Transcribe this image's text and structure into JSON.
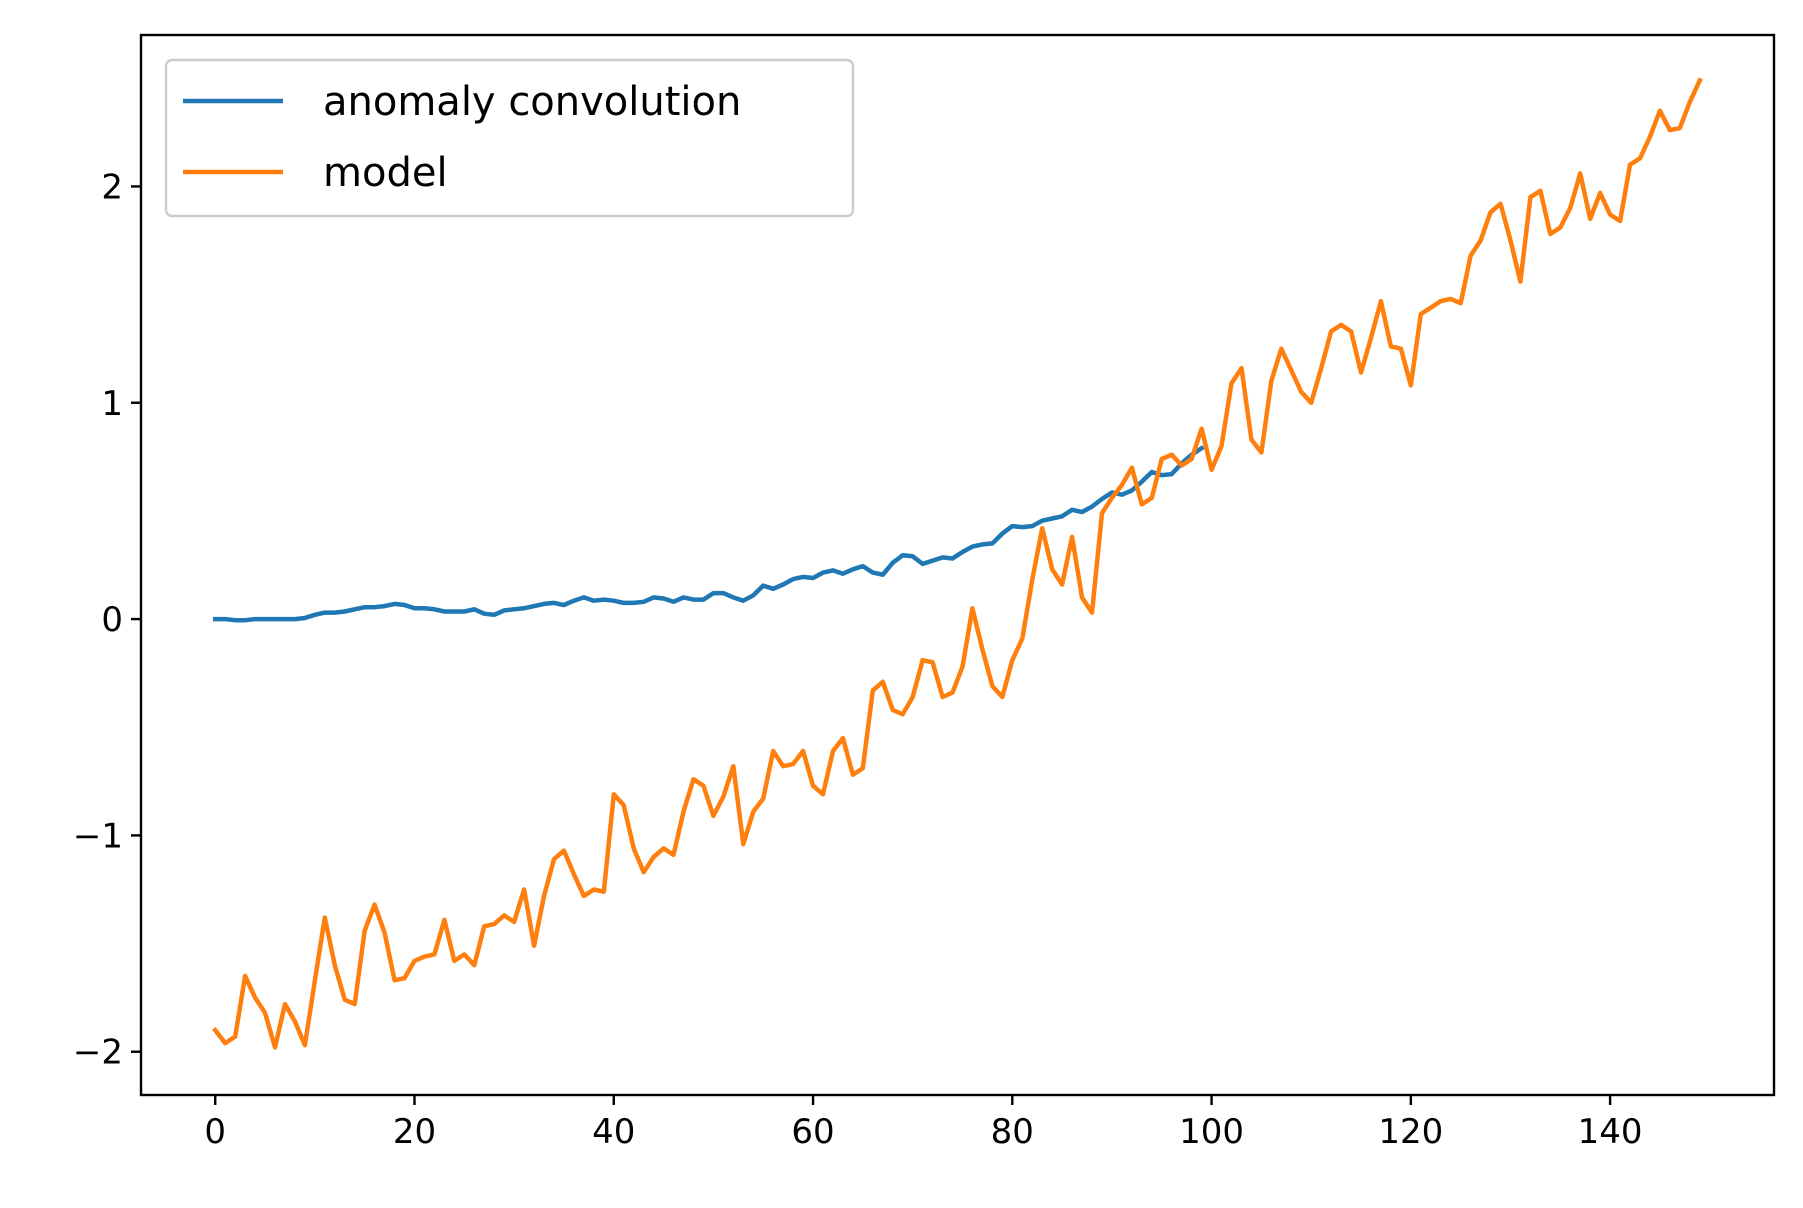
{
  "chart_data": {
    "type": "line",
    "title": "",
    "xlabel": "",
    "ylabel": "",
    "xlim": [
      -7.45,
      156.45
    ],
    "ylim": [
      -2.2,
      2.7
    ],
    "xticks": [
      0,
      20,
      40,
      60,
      80,
      100,
      120,
      140
    ],
    "yticks": [
      -2,
      -1,
      0,
      1,
      2
    ],
    "grid": false,
    "legend": {
      "position": "top-left"
    },
    "series": [
      {
        "name": "anomaly convolution",
        "color": "#1f77b4",
        "x": [
          0,
          1,
          2,
          3,
          4,
          5,
          6,
          7,
          8,
          9,
          10,
          11,
          12,
          13,
          14,
          15,
          16,
          17,
          18,
          19,
          20,
          21,
          22,
          23,
          24,
          25,
          26,
          27,
          28,
          29,
          30,
          31,
          32,
          33,
          34,
          35,
          36,
          37,
          38,
          39,
          40,
          41,
          42,
          43,
          44,
          45,
          46,
          47,
          48,
          49,
          50,
          51,
          52,
          53,
          54,
          55,
          56,
          57,
          58,
          59,
          60,
          61,
          62,
          63,
          64,
          65,
          66,
          67,
          68,
          69,
          70,
          71,
          72,
          73,
          74,
          75,
          76,
          77,
          78,
          79,
          80,
          81,
          82,
          83,
          84,
          85,
          86,
          87,
          88,
          89,
          90,
          91,
          92,
          93,
          94,
          95,
          96,
          97,
          98,
          99
        ],
        "y": [
          0.0,
          0.0,
          -0.005,
          -0.005,
          0.0,
          0.0,
          0.0,
          0.0,
          0.0,
          0.005,
          0.02,
          0.03,
          0.03,
          0.035,
          0.045,
          0.055,
          0.055,
          0.06,
          0.07,
          0.065,
          0.05,
          0.05,
          0.045,
          0.035,
          0.035,
          0.035,
          0.045,
          0.025,
          0.02,
          0.04,
          0.045,
          0.05,
          0.06,
          0.07,
          0.075,
          0.065,
          0.085,
          0.1,
          0.085,
          0.09,
          0.085,
          0.075,
          0.075,
          0.08,
          0.1,
          0.095,
          0.08,
          0.1,
          0.09,
          0.09,
          0.12,
          0.12,
          0.1,
          0.085,
          0.11,
          0.155,
          0.14,
          0.16,
          0.185,
          0.195,
          0.19,
          0.215,
          0.225,
          0.21,
          0.23,
          0.245,
          0.215,
          0.205,
          0.26,
          0.295,
          0.29,
          0.255,
          0.27,
          0.285,
          0.28,
          0.31,
          0.335,
          0.345,
          0.35,
          0.395,
          0.43,
          0.425,
          0.43,
          0.455,
          0.465,
          0.475,
          0.505,
          0.495,
          0.52,
          0.555,
          0.585,
          0.575,
          0.595,
          0.635,
          0.68,
          0.665,
          0.67,
          0.72,
          0.76,
          0.79
        ]
      },
      {
        "name": "model",
        "color": "#ff7f0e",
        "x": [
          0,
          1,
          2,
          3,
          4,
          5,
          6,
          7,
          8,
          9,
          10,
          11,
          12,
          13,
          14,
          15,
          16,
          17,
          18,
          19,
          20,
          21,
          22,
          23,
          24,
          25,
          26,
          27,
          28,
          29,
          30,
          31,
          32,
          33,
          34,
          35,
          36,
          37,
          38,
          39,
          40,
          41,
          42,
          43,
          44,
          45,
          46,
          47,
          48,
          49,
          50,
          51,
          52,
          53,
          54,
          55,
          56,
          57,
          58,
          59,
          60,
          61,
          62,
          63,
          64,
          65,
          66,
          67,
          68,
          69,
          70,
          71,
          72,
          73,
          74,
          75,
          76,
          77,
          78,
          79,
          80,
          81,
          82,
          83,
          84,
          85,
          86,
          87,
          88,
          89,
          90,
          91,
          92,
          93,
          94,
          95,
          96,
          97,
          98,
          99,
          100,
          101,
          102,
          103,
          104,
          105,
          106,
          107,
          108,
          109,
          110,
          111,
          112,
          113,
          114,
          115,
          116,
          117,
          118,
          119,
          120,
          121,
          122,
          123,
          124,
          125,
          126,
          127,
          128,
          129,
          130,
          131,
          132,
          133,
          134,
          135,
          136,
          137,
          138,
          139,
          140,
          141,
          142,
          143,
          144,
          145,
          146,
          147,
          148,
          149
        ],
        "y": [
          -1.9,
          -1.96,
          -1.93,
          -1.65,
          -1.75,
          -1.82,
          -1.98,
          -1.78,
          -1.86,
          -1.97,
          -1.67,
          -1.38,
          -1.6,
          -1.76,
          -1.78,
          -1.44,
          -1.32,
          -1.45,
          -1.67,
          -1.66,
          -1.58,
          -1.56,
          -1.55,
          -1.39,
          -1.58,
          -1.55,
          -1.6,
          -1.42,
          -1.41,
          -1.37,
          -1.4,
          -1.25,
          -1.51,
          -1.28,
          -1.11,
          -1.07,
          -1.18,
          -1.28,
          -1.25,
          -1.26,
          -0.81,
          -0.86,
          -1.06,
          -1.17,
          -1.1,
          -1.06,
          -1.09,
          -0.89,
          -0.74,
          -0.77,
          -0.91,
          -0.82,
          -0.68,
          -1.04,
          -0.89,
          -0.83,
          -0.61,
          -0.68,
          -0.67,
          -0.61,
          -0.77,
          -0.81,
          -0.61,
          -0.55,
          -0.72,
          -0.69,
          -0.33,
          -0.29,
          -0.42,
          -0.44,
          -0.36,
          -0.19,
          -0.2,
          -0.36,
          -0.34,
          -0.22,
          0.05,
          -0.14,
          -0.31,
          -0.36,
          -0.19,
          -0.09,
          0.18,
          0.42,
          0.23,
          0.16,
          0.38,
          0.1,
          0.03,
          0.49,
          0.56,
          0.62,
          0.7,
          0.53,
          0.56,
          0.74,
          0.76,
          0.71,
          0.74,
          0.88,
          0.69,
          0.8,
          1.09,
          1.16,
          0.83,
          0.77,
          1.1,
          1.25,
          1.15,
          1.05,
          1.0,
          1.16,
          1.33,
          1.36,
          1.33,
          1.14,
          1.3,
          1.47,
          1.26,
          1.25,
          1.08,
          1.41,
          1.44,
          1.47,
          1.48,
          1.46,
          1.68,
          1.75,
          1.88,
          1.92,
          1.75,
          1.56,
          1.95,
          1.98,
          1.78,
          1.81,
          1.9,
          2.06,
          1.85,
          1.97,
          1.87,
          1.84,
          2.1,
          2.13,
          2.23,
          2.35,
          2.26,
          2.27,
          2.39,
          2.49
        ]
      }
    ]
  }
}
